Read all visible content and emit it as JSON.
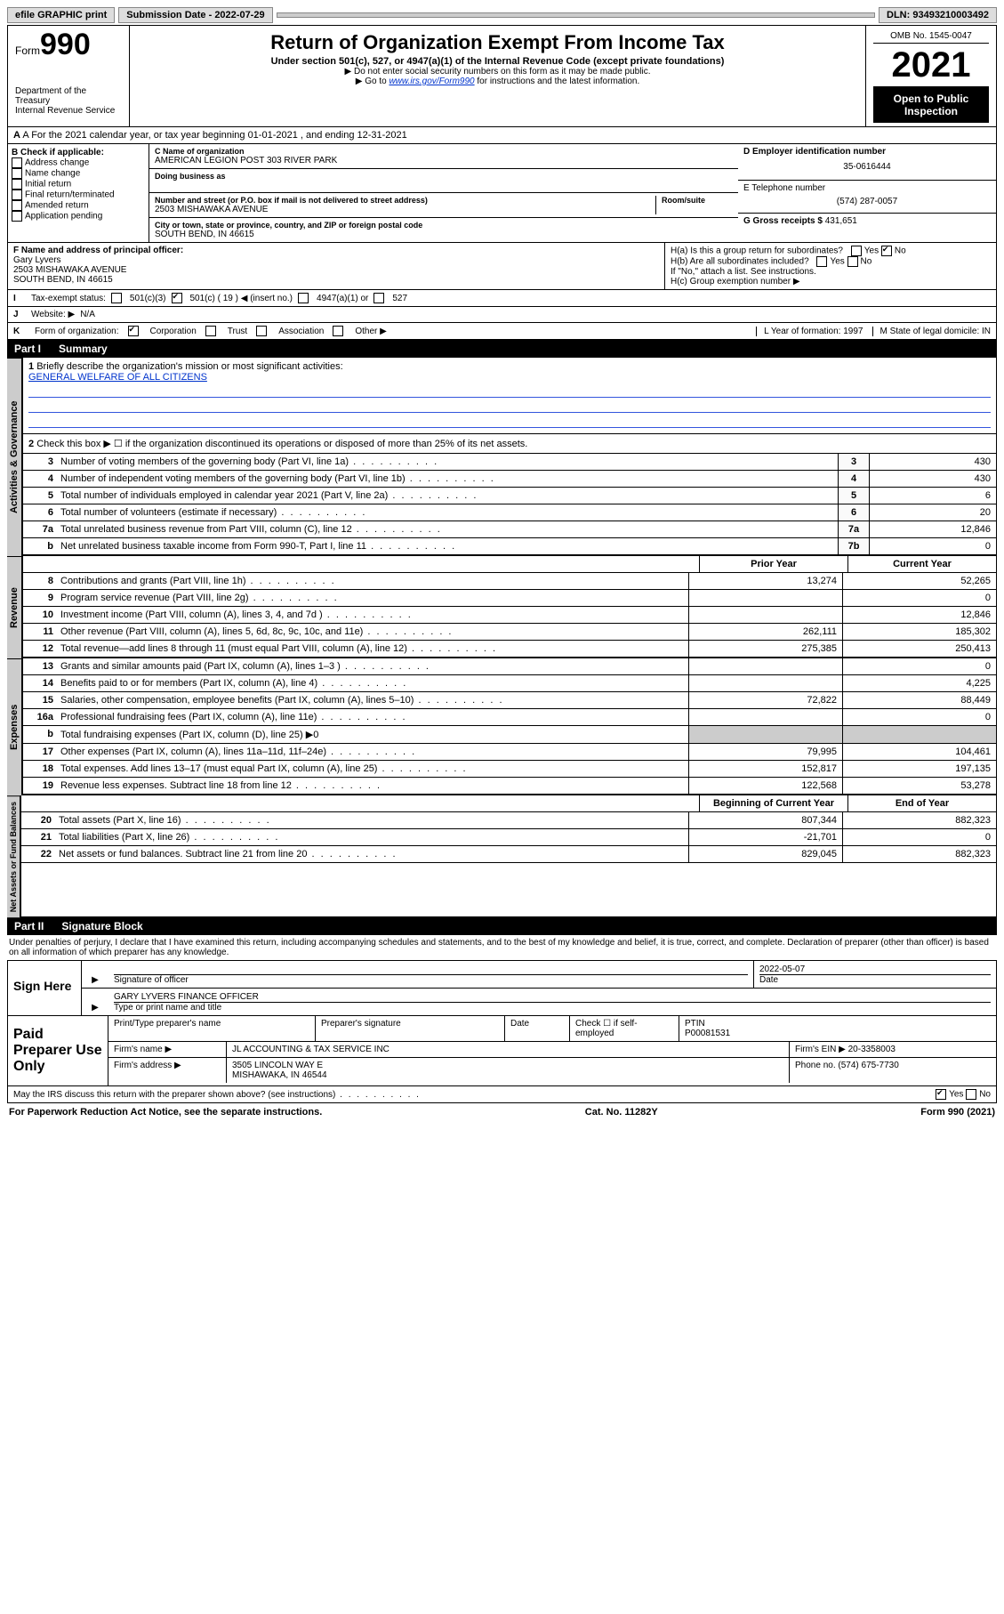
{
  "topbar": {
    "efile": "efile GRAPHIC print",
    "sub_label": "Submission Date - 2022-07-29",
    "dln": "DLN: 93493210003492"
  },
  "header": {
    "form_word": "Form",
    "form_no": "990",
    "dept": "Department of the Treasury",
    "irs": "Internal Revenue Service",
    "title": "Return of Organization Exempt From Income Tax",
    "sub": "Under section 501(c), 527, or 4947(a)(1) of the Internal Revenue Code (except private foundations)",
    "note1": "▶ Do not enter social security numbers on this form as it may be made public.",
    "note2_a": "▶ Go to ",
    "note2_link": "www.irs.gov/Form990",
    "note2_b": " for instructions and the latest information.",
    "omb": "OMB No. 1545-0047",
    "year": "2021",
    "open": "Open to Public Inspection"
  },
  "row_a": "A For the 2021 calendar year, or tax year beginning 01-01-2021   , and ending 12-31-2021",
  "col_b": {
    "label": "B Check if applicable:",
    "items": [
      "Address change",
      "Name change",
      "Initial return",
      "Final return/terminated",
      "Amended return",
      "Application pending"
    ]
  },
  "col_c": {
    "name_lbl": "C Name of organization",
    "name": "AMERICAN LEGION POST 303 RIVER PARK",
    "dba_lbl": "Doing business as",
    "addr_lbl": "Number and street (or P.O. box if mail is not delivered to street address)",
    "addr": "2503 MISHAWAKA AVENUE",
    "room_lbl": "Room/suite",
    "city_lbl": "City or town, state or province, country, and ZIP or foreign postal code",
    "city": "SOUTH BEND, IN  46615"
  },
  "col_de": {
    "d_lbl": "D Employer identification number",
    "d_val": "35-0616444",
    "e_lbl": "E Telephone number",
    "e_val": "(574) 287-0057",
    "g_lbl": "G Gross receipts $ ",
    "g_val": "431,651"
  },
  "row_f": {
    "f_lbl": "F Name and address of principal officer:",
    "f_name": "Gary Lyvers",
    "f_addr1": "2503 MISHAWAKA AVENUE",
    "f_addr2": "SOUTH BEND, IN  46615",
    "ha": "H(a)  Is this a group return for subordinates?",
    "hb": "H(b)  Are all subordinates included?",
    "hb_note": "If \"No,\" attach a list. See instructions.",
    "hc": "H(c)  Group exemption number ▶"
  },
  "row_i": {
    "num": "I",
    "lbl": "Tax-exempt status:",
    "c3": "501(c)(3)",
    "c": "501(c) ( 19 ) ◀ (insert no.)",
    "a1": "4947(a)(1) or",
    "s527": "527"
  },
  "row_j": {
    "num": "J",
    "lbl": "Website: ▶",
    "val": "N/A"
  },
  "row_k": {
    "num": "K",
    "lbl": "Form of organization:",
    "opts": [
      "Corporation",
      "Trust",
      "Association",
      "Other ▶"
    ],
    "l": "L Year of formation: 1997",
    "m": "M State of legal domicile: IN"
  },
  "part1": {
    "pt": "Part I",
    "title": "Summary"
  },
  "summary": {
    "s1_lbl": "Briefly describe the organization's mission or most significant activities:",
    "s1_val": "GENERAL WELFARE OF ALL CITIZENS",
    "s2": "Check this box ▶ ☐  if the organization discontinued its operations or disposed of more than 25% of its net assets.",
    "rows_a": [
      {
        "n": "3",
        "d": "Number of voting members of the governing body (Part VI, line 1a)",
        "box": "3",
        "v": "430"
      },
      {
        "n": "4",
        "d": "Number of independent voting members of the governing body (Part VI, line 1b)",
        "box": "4",
        "v": "430"
      },
      {
        "n": "5",
        "d": "Total number of individuals employed in calendar year 2021 (Part V, line 2a)",
        "box": "5",
        "v": "6"
      },
      {
        "n": "6",
        "d": "Total number of volunteers (estimate if necessary)",
        "box": "6",
        "v": "20"
      },
      {
        "n": "7a",
        "d": "Total unrelated business revenue from Part VIII, column (C), line 12",
        "box": "7a",
        "v": "12,846"
      },
      {
        "n": "b",
        "d": "Net unrelated business taxable income from Form 990-T, Part I, line 11",
        "box": "7b",
        "v": "0"
      }
    ],
    "hdr_prior": "Prior Year",
    "hdr_curr": "Current Year",
    "revenue": [
      {
        "n": "8",
        "d": "Contributions and grants (Part VIII, line 1h)",
        "p": "13,274",
        "c": "52,265"
      },
      {
        "n": "9",
        "d": "Program service revenue (Part VIII, line 2g)",
        "p": "",
        "c": "0"
      },
      {
        "n": "10",
        "d": "Investment income (Part VIII, column (A), lines 3, 4, and 7d )",
        "p": "",
        "c": "12,846"
      },
      {
        "n": "11",
        "d": "Other revenue (Part VIII, column (A), lines 5, 6d, 8c, 9c, 10c, and 11e)",
        "p": "262,111",
        "c": "185,302"
      },
      {
        "n": "12",
        "d": "Total revenue—add lines 8 through 11 (must equal Part VIII, column (A), line 12)",
        "p": "275,385",
        "c": "250,413"
      }
    ],
    "expenses": [
      {
        "n": "13",
        "d": "Grants and similar amounts paid (Part IX, column (A), lines 1–3 )",
        "p": "",
        "c": "0"
      },
      {
        "n": "14",
        "d": "Benefits paid to or for members (Part IX, column (A), line 4)",
        "p": "",
        "c": "4,225"
      },
      {
        "n": "15",
        "d": "Salaries, other compensation, employee benefits (Part IX, column (A), lines 5–10)",
        "p": "72,822",
        "c": "88,449"
      },
      {
        "n": "16a",
        "d": "Professional fundraising fees (Part IX, column (A), line 11e)",
        "p": "",
        "c": "0"
      },
      {
        "n": "b",
        "d": "Total fundraising expenses (Part IX, column (D), line 25) ▶0",
        "shade": true
      },
      {
        "n": "17",
        "d": "Other expenses (Part IX, column (A), lines 11a–11d, 11f–24e)",
        "p": "79,995",
        "c": "104,461"
      },
      {
        "n": "18",
        "d": "Total expenses. Add lines 13–17 (must equal Part IX, column (A), line 25)",
        "p": "152,817",
        "c": "197,135"
      },
      {
        "n": "19",
        "d": "Revenue less expenses. Subtract line 18 from line 12",
        "p": "122,568",
        "c": "53,278"
      }
    ],
    "hdr_beg": "Beginning of Current Year",
    "hdr_end": "End of Year",
    "netassets": [
      {
        "n": "20",
        "d": "Total assets (Part X, line 16)",
        "p": "807,344",
        "c": "882,323"
      },
      {
        "n": "21",
        "d": "Total liabilities (Part X, line 26)",
        "p": "-21,701",
        "c": "0"
      },
      {
        "n": "22",
        "d": "Net assets or fund balances. Subtract line 21 from line 20",
        "p": "829,045",
        "c": "882,323"
      }
    ]
  },
  "sidelabels": {
    "ag": "Activities & Governance",
    "rev": "Revenue",
    "exp": "Expenses",
    "na": "Net Assets or Fund Balances"
  },
  "part2": {
    "pt": "Part II",
    "title": "Signature Block"
  },
  "penalty": "Under penalties of perjury, I declare that I have examined this return, including accompanying schedules and statements, and to the best of my knowledge and belief, it is true, correct, and complete. Declaration of preparer (other than officer) is based on all information of which preparer has any knowledge.",
  "sign": {
    "here": "Sign Here",
    "sig_lbl": "Signature of officer",
    "date_lbl": "Date",
    "date": "2022-05-07",
    "name": "GARY LYVERS  FINANCE OFFICER",
    "name_lbl": "Type or print name and title"
  },
  "paid": {
    "title": "Paid Preparer Use Only",
    "h1": "Print/Type preparer's name",
    "h2": "Preparer's signature",
    "h3": "Date",
    "h4a": "Check ☐ if self-employed",
    "h4b": "PTIN",
    "ptin": "P00081531",
    "firm_lbl": "Firm's name    ▶",
    "firm": "JL ACCOUNTING & TAX SERVICE INC",
    "ein_lbl": "Firm's EIN ▶",
    "ein": "20-3358003",
    "addr_lbl": "Firm's address ▶",
    "addr1": "3505 LINCOLN WAY E",
    "addr2": "MISHAWAKA, IN  46544",
    "phone_lbl": "Phone no.",
    "phone": "(574) 675-7730"
  },
  "discuss": "May the IRS discuss this return with the preparer shown above? (see instructions)",
  "footer": {
    "pra": "For Paperwork Reduction Act Notice, see the separate instructions.",
    "cat": "Cat. No. 11282Y",
    "form": "Form 990 (2021)"
  }
}
